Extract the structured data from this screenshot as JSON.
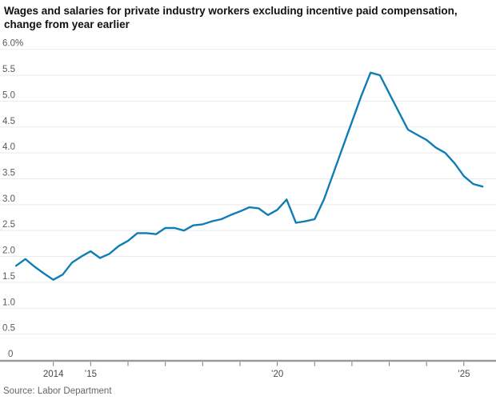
{
  "page": {
    "title_line1": "Wages and salaries for private industry workers excluding incentive paid compensation,",
    "title_line2": "change from year earlier",
    "source": "Source: Labor Department"
  },
  "chart_data": {
    "type": "line",
    "title": "Wages and salaries for private industry workers excluding incentive paid compensation, change from year earlier",
    "series_name": "Wages and salaries, change from year earlier (%)",
    "unit": "%",
    "x": [
      2013.0,
      2013.25,
      2013.5,
      2013.75,
      2014.0,
      2014.25,
      2014.5,
      2014.75,
      2015.0,
      2015.25,
      2015.5,
      2015.75,
      2016.0,
      2016.25,
      2016.5,
      2016.75,
      2017.0,
      2017.25,
      2017.5,
      2017.75,
      2018.0,
      2018.25,
      2018.5,
      2018.75,
      2019.0,
      2019.25,
      2019.5,
      2019.75,
      2020.0,
      2020.25,
      2020.5,
      2020.75,
      2021.0,
      2021.25,
      2021.5,
      2021.75,
      2022.0,
      2022.25,
      2022.5,
      2022.75,
      2023.0,
      2023.25,
      2023.5,
      2023.75,
      2024.0,
      2024.25,
      2024.5,
      2024.75,
      2025.0,
      2025.25,
      2025.5
    ],
    "values": [
      1.82,
      1.95,
      1.8,
      1.67,
      1.55,
      1.65,
      1.88,
      2.0,
      2.1,
      1.97,
      2.05,
      2.2,
      2.3,
      2.45,
      2.45,
      2.43,
      2.55,
      2.55,
      2.5,
      2.6,
      2.62,
      2.68,
      2.72,
      2.8,
      2.87,
      2.95,
      2.93,
      2.8,
      2.9,
      3.1,
      2.65,
      2.68,
      2.72,
      3.1,
      3.6,
      4.1,
      4.6,
      5.1,
      5.55,
      5.5,
      5.15,
      4.8,
      4.45,
      4.35,
      4.25,
      4.1,
      4.0,
      3.8,
      3.55,
      3.4,
      3.35
    ],
    "ylim": [
      0,
      6.0
    ],
    "grid": "horizontal",
    "legend": "none",
    "y_ticks": [
      {
        "label": "6.0%",
        "value": 6.0
      },
      {
        "label": "5.5",
        "value": 5.5
      },
      {
        "label": "5.0",
        "value": 5.0
      },
      {
        "label": "4.5",
        "value": 4.5
      },
      {
        "label": "4.0",
        "value": 4.0
      },
      {
        "label": "3.5",
        "value": 3.5
      },
      {
        "label": "3.0",
        "value": 3.0
      },
      {
        "label": "2.5",
        "value": 2.5
      },
      {
        "label": "2.0",
        "value": 2.0
      },
      {
        "label": "1.5",
        "value": 1.5
      },
      {
        "label": "1.0",
        "value": 1.0
      },
      {
        "label": "0.5",
        "value": 0.5
      },
      {
        "label": "0",
        "value": 0
      }
    ],
    "x_tick_years": [
      2014,
      2015,
      2016,
      2017,
      2018,
      2019,
      2020,
      2021,
      2022,
      2023,
      2024,
      2025
    ],
    "x_labels": [
      {
        "label": "2014",
        "year": 2014
      },
      {
        "label": "’15",
        "year": 2015
      },
      {
        "label": "’20",
        "year": 2020
      },
      {
        "label": "’25",
        "year": 2025
      }
    ],
    "colors": {
      "line": "#0f7eb4",
      "grid": "#ebebeb",
      "zero_axis": "#9a9a9a",
      "tick": "#777777",
      "y_label": "#5a5a5a",
      "x_label": "#4a4a4a",
      "title": "#111111"
    }
  }
}
